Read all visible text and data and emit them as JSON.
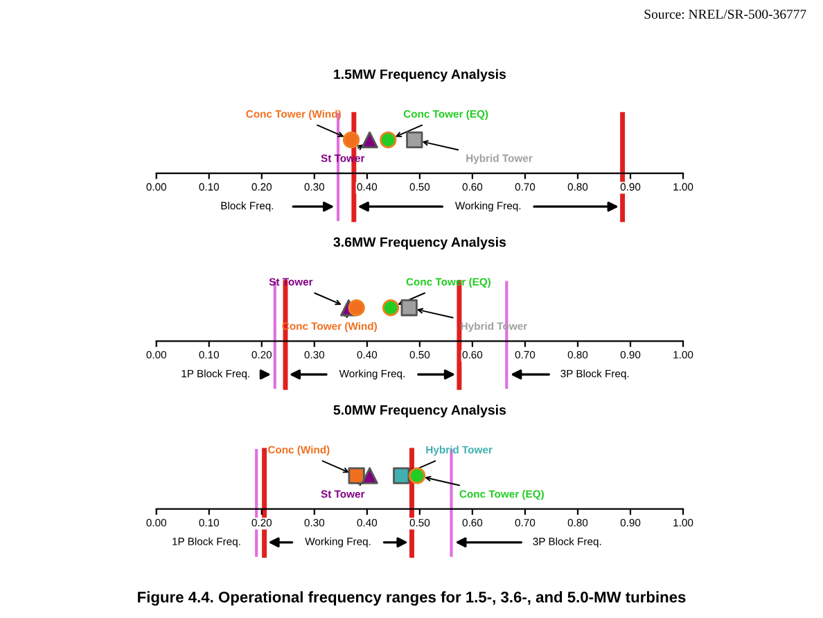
{
  "chart_data": [
    {
      "type": "scatter",
      "title": "1.5MW Frequency Analysis",
      "orientation": "horizontal",
      "categories": [
        null
      ],
      "xlim": [
        0,
        1
      ],
      "xticks": [
        {
          "value": 0,
          "label": "0.00"
        },
        {
          "value": 0.1,
          "label": "0.10"
        },
        {
          "value": 0.2,
          "label": "0.20"
        },
        {
          "value": 0.3,
          "label": "0.30"
        },
        {
          "value": 0.4,
          "label": "0.40"
        },
        {
          "value": 0.5,
          "label": "0.50"
        },
        {
          "value": 0.6,
          "label": "0.60"
        },
        {
          "value": 0.7,
          "label": "0.70"
        },
        {
          "value": 0.8,
          "label": "0.80"
        },
        {
          "value": 0.9,
          "label": "0.90"
        },
        {
          "value": 1,
          "label": "1.00"
        }
      ],
      "series": [
        {
          "name": "Conc Tower (Wind)",
          "color": "#f07020",
          "marker": "circle",
          "values": [
            0.37
          ]
        },
        {
          "name": "St Tower",
          "color": "#800080",
          "marker": "triangle",
          "values": [
            0.405
          ]
        },
        {
          "name": "Conc Tower (EQ)",
          "color": "#22cc22",
          "marker": "circle",
          "values": [
            0.44
          ]
        },
        {
          "name": "Hybrid Tower",
          "color": "#a0a0a0",
          "marker": "square",
          "values": [
            0.49
          ]
        }
      ],
      "ref_lines": [
        {
          "axis": "x",
          "value": 0.345,
          "color": "#e070e0"
        },
        {
          "axis": "x",
          "value": 0.375,
          "color": "#e02020"
        },
        {
          "axis": "x",
          "value": 0.885,
          "color": "#e02020"
        }
      ],
      "annotations": [
        "Source: NREL/SR-500-36777",
        "Block Freq.",
        "Working Freq."
      ]
    },
    {
      "type": "scatter",
      "title": "3.6MW Frequency Analysis",
      "orientation": "horizontal",
      "categories": [
        null
      ],
      "xlim": [
        0,
        1
      ],
      "xticks": [
        {
          "value": 0,
          "label": "0.00"
        },
        {
          "value": 0.1,
          "label": "0.10"
        },
        {
          "value": 0.2,
          "label": "0.20"
        },
        {
          "value": 0.3,
          "label": "0.30"
        },
        {
          "value": 0.4,
          "label": "0.40"
        },
        {
          "value": 0.5,
          "label": "0.50"
        },
        {
          "value": 0.6,
          "label": "0.60"
        },
        {
          "value": 0.7,
          "label": "0.70"
        },
        {
          "value": 0.8,
          "label": "0.80"
        },
        {
          "value": 0.9,
          "label": "0.90"
        },
        {
          "value": 1,
          "label": "1.00"
        }
      ],
      "series": [
        {
          "name": "St Tower",
          "color": "#800080",
          "marker": "triangle",
          "values": [
            0.365
          ]
        },
        {
          "name": "Conc Tower (Wind)",
          "color": "#f07020",
          "marker": "circle",
          "values": [
            0.38
          ]
        },
        {
          "name": "Conc Tower (EQ)",
          "color": "#22cc22",
          "marker": "circle",
          "values": [
            0.445
          ]
        },
        {
          "name": "Hybrid Tower",
          "color": "#a0a0a0",
          "marker": "square",
          "values": [
            0.48
          ]
        }
      ],
      "ref_lines": [
        {
          "axis": "x",
          "value": 0.225,
          "color": "#e070e0"
        },
        {
          "axis": "x",
          "value": 0.245,
          "color": "#e02020"
        },
        {
          "axis": "x",
          "value": 0.575,
          "color": "#e02020"
        },
        {
          "axis": "x",
          "value": 0.665,
          "color": "#e070e0"
        }
      ],
      "annotations": [
        "1P Block Freq.",
        "Working Freq.",
        "3P Block Freq."
      ]
    },
    {
      "type": "scatter",
      "title": "5.0MW Frequency Analysis",
      "orientation": "horizontal",
      "categories": [
        null
      ],
      "xlim": [
        0,
        1
      ],
      "xticks": [
        {
          "value": 0,
          "label": "0.00"
        },
        {
          "value": 0.1,
          "label": "0.10"
        },
        {
          "value": 0.2,
          "label": "0.20"
        },
        {
          "value": 0.3,
          "label": "0.30"
        },
        {
          "value": 0.4,
          "label": "0.40"
        },
        {
          "value": 0.5,
          "label": "0.50"
        },
        {
          "value": 0.6,
          "label": "0.60"
        },
        {
          "value": 0.7,
          "label": "0.70"
        },
        {
          "value": 0.8,
          "label": "0.80"
        },
        {
          "value": 0.9,
          "label": "0.90"
        },
        {
          "value": 1,
          "label": "1.00"
        }
      ],
      "series": [
        {
          "name": "Conc (Wind)",
          "color": "#f07020",
          "marker": "square",
          "values": [
            0.38
          ]
        },
        {
          "name": "St Tower",
          "color": "#800080",
          "marker": "triangle",
          "values": [
            0.405
          ]
        },
        {
          "name": "Hybrid Tower",
          "color": "#40b0b0",
          "marker": "square",
          "values": [
            0.465
          ]
        },
        {
          "name": "Conc Tower (EQ)",
          "color": "#22cc22",
          "marker": "circle",
          "values": [
            0.495
          ]
        }
      ],
      "ref_lines": [
        {
          "axis": "x",
          "value": 0.19,
          "color": "#e070e0"
        },
        {
          "axis": "x",
          "value": 0.205,
          "color": "#e02020"
        },
        {
          "axis": "x",
          "value": 0.485,
          "color": "#e02020"
        },
        {
          "axis": "x",
          "value": 0.56,
          "color": "#e070e0"
        }
      ],
      "annotations": [
        "1P Block Freq.",
        "Working Freq.",
        "3P Block Freq.",
        "Figure 4.4. Operational frequency ranges for 1.5-, 3.6-, and 5.0-MW turbines"
      ]
    }
  ]
}
